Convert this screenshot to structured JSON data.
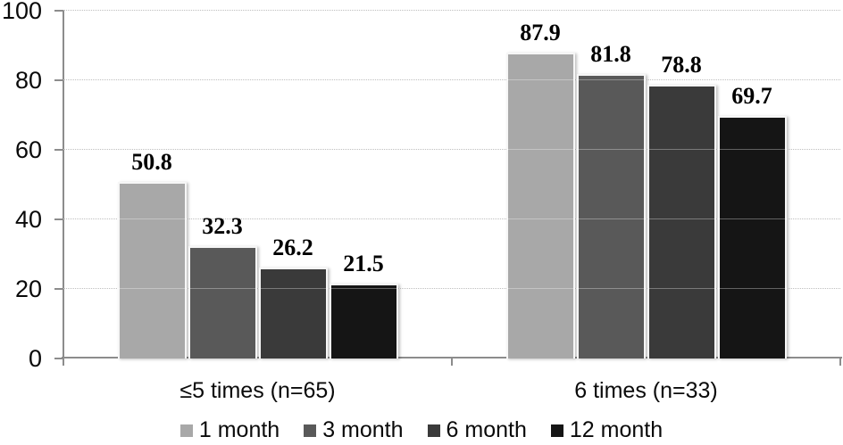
{
  "chart_data": {
    "type": "bar",
    "title": "",
    "xlabel": "",
    "ylabel": "",
    "categories": [
      "≤5 times (n=65)",
      "6 times (n=33)"
    ],
    "series": [
      {
        "name": "1 month",
        "color": "#a8a8a8",
        "values": [
          50.8,
          87.9
        ]
      },
      {
        "name": "3 month",
        "color": "#595959",
        "values": [
          32.3,
          81.8
        ]
      },
      {
        "name": "6 month",
        "color": "#3a3a3a",
        "values": [
          26.2,
          78.8
        ]
      },
      {
        "name": "12 month",
        "color": "#151515",
        "values": [
          21.5,
          69.7
        ]
      }
    ],
    "value_labels": {
      "≤5 times (n=65)": [
        50.8,
        32.3,
        26.2,
        21.5
      ],
      "6 times (n=33)": [
        87.9,
        81.8,
        78.8,
        69.7
      ]
    },
    "ylim": [
      0,
      100
    ],
    "yticks": [
      0,
      20,
      40,
      60,
      80,
      100
    ],
    "grid": "horizontal-dotted",
    "legend_position": "bottom-center"
  },
  "colors": {
    "background": "#ffffff",
    "axis": "#8c8c8c",
    "gridline": "#9e9e9e",
    "bar_edge": "#f6f6f6",
    "text": "#0a0a0a",
    "value_label_text": "#000000"
  }
}
